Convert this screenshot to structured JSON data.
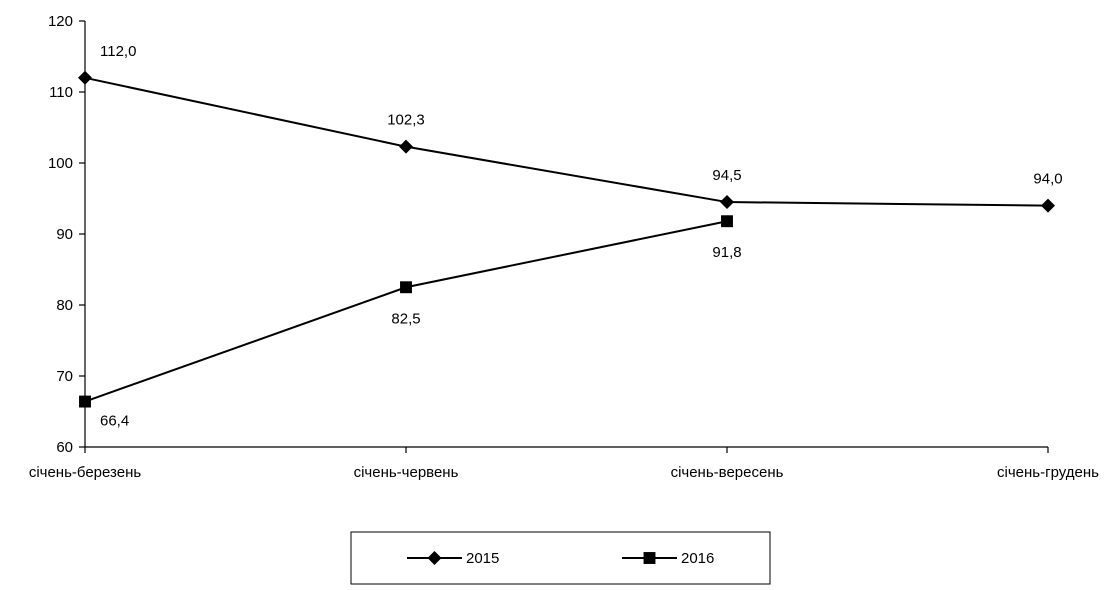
{
  "chart_data": {
    "type": "line",
    "title": "",
    "xlabel": "",
    "ylabel": "",
    "categories": [
      "січень-березень",
      "січень-червень",
      "січень-вересень",
      "січень-грудень"
    ],
    "ylim": [
      60,
      120
    ],
    "yticks": [
      60,
      70,
      80,
      90,
      100,
      110,
      120
    ],
    "grid": false,
    "legend_position": "bottom",
    "series": [
      {
        "name": "2015",
        "marker": "diamond",
        "color": "#000000",
        "values": [
          112.0,
          102.3,
          94.5,
          94.0
        ],
        "labels": [
          "112,0",
          "102,3",
          "94,5",
          "94,0"
        ],
        "label_position": "above"
      },
      {
        "name": "2016",
        "marker": "square",
        "color": "#000000",
        "values": [
          66.4,
          82.5,
          91.8,
          null
        ],
        "labels": [
          "66,4",
          "82,5",
          "91,8",
          null
        ],
        "label_position": "below"
      }
    ]
  }
}
